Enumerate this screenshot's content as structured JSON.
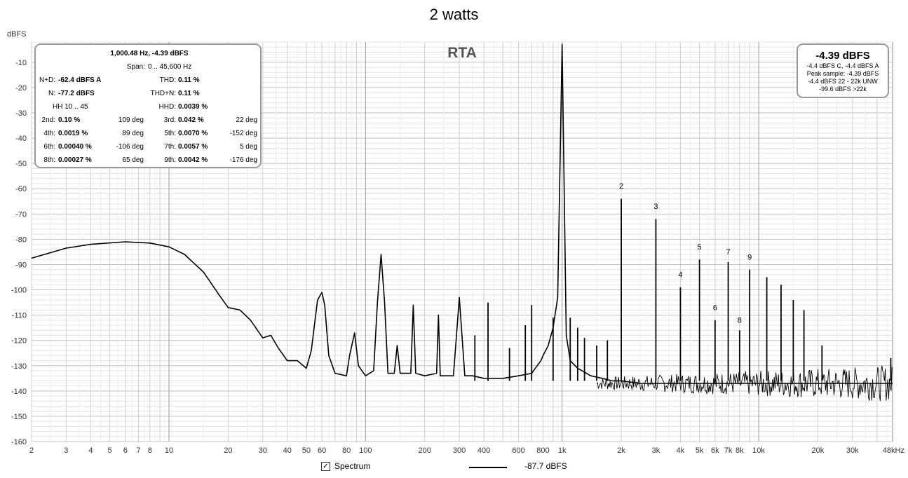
{
  "chart_data": {
    "type": "line",
    "title": "2 watts",
    "ylabel": "dBFS",
    "x_scale": "log",
    "xlim": [
      2,
      48000
    ],
    "ylim": [
      -160,
      -2
    ],
    "grid": true,
    "y_ticks": [
      -10,
      -20,
      -30,
      -40,
      -50,
      -60,
      -70,
      -80,
      -90,
      -100,
      -110,
      -120,
      -130,
      -140,
      -150,
      -160
    ],
    "x_ticks": [
      {
        "v": 2,
        "l": "2"
      },
      {
        "v": 3,
        "l": "3"
      },
      {
        "v": 4,
        "l": "4"
      },
      {
        "v": 5,
        "l": "5"
      },
      {
        "v": 6,
        "l": "6"
      },
      {
        "v": 7,
        "l": "7"
      },
      {
        "v": 8,
        "l": "8"
      },
      {
        "v": 10,
        "l": "10"
      },
      {
        "v": 20,
        "l": "20"
      },
      {
        "v": 30,
        "l": "30"
      },
      {
        "v": 40,
        "l": "40"
      },
      {
        "v": 50,
        "l": "50"
      },
      {
        "v": 60,
        "l": "60"
      },
      {
        "v": 80,
        "l": "80"
      },
      {
        "v": 100,
        "l": "100"
      },
      {
        "v": 200,
        "l": "200"
      },
      {
        "v": 300,
        "l": "300"
      },
      {
        "v": 400,
        "l": "400"
      },
      {
        "v": 600,
        "l": "600"
      },
      {
        "v": 800,
        "l": "800"
      },
      {
        "v": 1000,
        "l": "1k"
      },
      {
        "v": 2000,
        "l": "2k"
      },
      {
        "v": 3000,
        "l": "3k"
      },
      {
        "v": 4000,
        "l": "4k"
      },
      {
        "v": 5000,
        "l": "5k"
      },
      {
        "v": 6000,
        "l": "6k"
      },
      {
        "v": 7000,
        "l": "7k"
      },
      {
        "v": 8000,
        "l": "8k"
      },
      {
        "v": 10000,
        "l": "10k"
      },
      {
        "v": 20000,
        "l": "20k"
      },
      {
        "v": 30000,
        "l": "30k"
      },
      {
        "v": 48000,
        "l": "48kHz"
      }
    ],
    "series": [
      {
        "name": "Spectrum",
        "color": "#000000",
        "x": [
          2,
          3,
          4,
          6,
          8,
          10,
          12,
          15,
          18,
          20,
          23,
          26,
          30,
          33,
          36,
          40,
          45,
          50,
          53,
          57,
          60,
          62,
          65,
          70,
          80,
          83,
          88,
          92,
          100,
          110,
          115,
          120,
          125,
          130,
          140,
          145,
          150,
          170,
          175,
          180,
          200,
          230,
          235,
          240,
          280,
          300,
          320,
          350,
          400,
          500,
          600,
          700,
          780,
          800,
          850,
          900,
          950,
          1000,
          1050,
          1100,
          1200,
          1400,
          1600,
          1800,
          2000,
          2500,
          3000,
          4000,
          5000,
          6000,
          7000,
          8000,
          10000,
          14000,
          20000,
          30000,
          48000
        ],
        "y": [
          -87.5,
          -83.5,
          -82,
          -81,
          -81.5,
          -83,
          -86,
          -93,
          -102,
          -107,
          -108,
          -112,
          -119,
          -118,
          -123,
          -128,
          -128,
          -131,
          -124,
          -104,
          -101,
          -106,
          -126,
          -133,
          -134,
          -126,
          -117,
          -130,
          -134,
          -132,
          -105,
          -86,
          -105,
          -133,
          -133,
          -122,
          -133,
          -133,
          -106,
          -133,
          -134,
          -133,
          -110,
          -134,
          -134,
          -103,
          -134,
          -134,
          -135,
          -135,
          -134,
          -133,
          -128,
          -126,
          -122,
          -115,
          -103,
          -3,
          -118,
          -128,
          -131,
          -134,
          -135,
          -136,
          -136,
          -137,
          -137,
          -137,
          -137,
          -137,
          -137,
          -137,
          -137,
          -137,
          -137,
          -137,
          -137
        ]
      }
    ],
    "spurs": [
      {
        "x": 2000,
        "y": -64
      },
      {
        "x": 3000,
        "y": -72
      },
      {
        "x": 4000,
        "y": -99
      },
      {
        "x": 5000,
        "y": -88
      },
      {
        "x": 6000,
        "y": -112
      },
      {
        "x": 7000,
        "y": -89
      },
      {
        "x": 8000,
        "y": -116
      },
      {
        "x": 9000,
        "y": -92
      },
      {
        "x": 11000,
        "y": -95
      },
      {
        "x": 13000,
        "y": -98
      },
      {
        "x": 15000,
        "y": -104
      },
      {
        "x": 17000,
        "y": -108
      },
      {
        "x": 21000,
        "y": -122
      },
      {
        "x": 1100,
        "y": -111
      },
      {
        "x": 1200,
        "y": -115
      },
      {
        "x": 1300,
        "y": -119
      },
      {
        "x": 1500,
        "y": -122
      },
      {
        "x": 1700,
        "y": -120
      },
      {
        "x": 900,
        "y": -111
      },
      {
        "x": 700,
        "y": -106
      },
      {
        "x": 650,
        "y": -114
      },
      {
        "x": 540,
        "y": -123
      },
      {
        "x": 420,
        "y": -105
      },
      {
        "x": 360,
        "y": -118
      },
      {
        "x": 47000,
        "y": -127
      }
    ],
    "noise": {
      "x_from": 1500,
      "x_to": 48000,
      "y_center": -137,
      "y_spread": 4
    },
    "harmonic_labels": [
      {
        "label": "2",
        "x": 2000,
        "y": -60
      },
      {
        "label": "3",
        "x": 3000,
        "y": -68
      },
      {
        "label": "4",
        "x": 4000,
        "y": -95
      },
      {
        "label": "5",
        "x": 5000,
        "y": -84
      },
      {
        "label": "6",
        "x": 6000,
        "y": -108
      },
      {
        "label": "7",
        "x": 7000,
        "y": -86
      },
      {
        "label": "8",
        "x": 8000,
        "y": -113
      },
      {
        "label": "9",
        "x": 9000,
        "y": -88
      }
    ]
  },
  "rta_label": "RTA",
  "info_panel": {
    "header": "1,000.48 Hz, -4.39 dBFS",
    "span_label": "Span:",
    "span_value": "0 .. 45,600 Hz",
    "nd_label": "N+D:",
    "nd_value": "-62.4 dBFS A",
    "thd_label": "THD:",
    "thd_value": "0.11 %",
    "n_label": "N:",
    "n_value": "-77.2 dBFS",
    "thdn_label": "THD+N:",
    "thdn_value": "0.11 %",
    "hh_label": "HH 10 .. 45",
    "hhd_label": "HHD:",
    "hhd_value": "0.0039 %",
    "harmonics": [
      {
        "l1": "2nd:",
        "v1": "0.10 %",
        "p1": "109 deg",
        "l2": "3rd:",
        "v2": "0.042 %",
        "p2": "22 deg"
      },
      {
        "l1": "4th:",
        "v1": "0.0019 %",
        "p1": "89 deg",
        "l2": "5th:",
        "v2": "0.0070 %",
        "p2": "-152 deg"
      },
      {
        "l1": "6th:",
        "v1": "0.00040 %",
        "p1": "-106 deg",
        "l2": "7th:",
        "v2": "0.0057 %",
        "p2": "5 deg"
      },
      {
        "l1": "8th:",
        "v1": "0.00027 %",
        "p1": "65 deg",
        "l2": "9th:",
        "v2": "0.0042 %",
        "p2": "-176 deg"
      }
    ]
  },
  "level_panel": {
    "big": "-4.39 dBFS",
    "lines": [
      "-4.4 dBFS C, -4.4 dBFS A",
      "Peak sample: -4.39 dBFS",
      "-4.4 dBFS 22 - 22k UNW",
      "-99.6 dBFS >22k"
    ]
  },
  "legend": {
    "checkbox_mark": "✓",
    "spectrum_label": "Spectrum",
    "level_value": "-87.7 dBFS"
  }
}
